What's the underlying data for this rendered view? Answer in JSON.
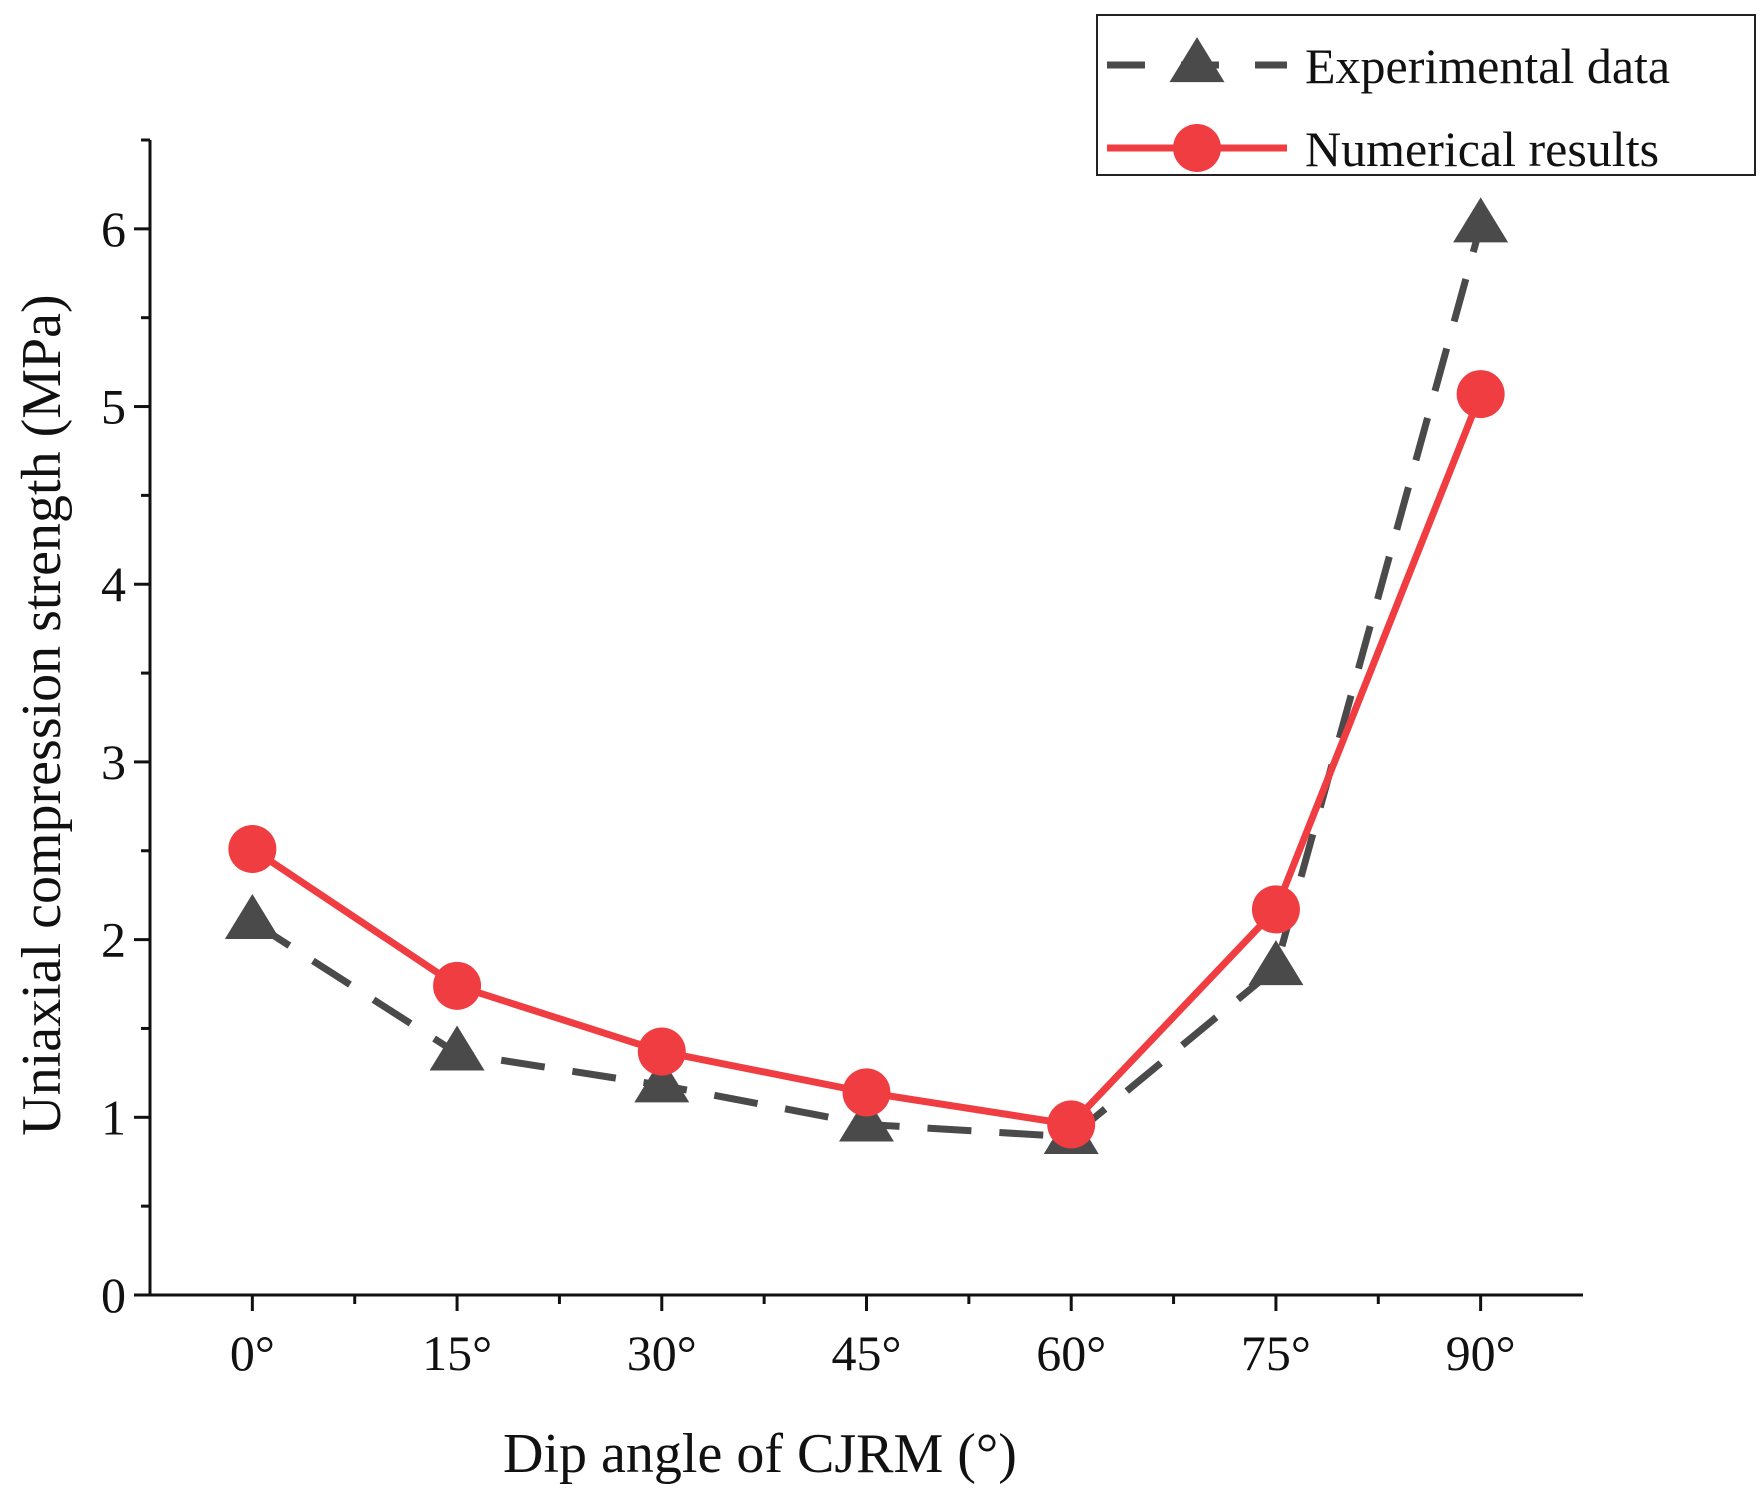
{
  "chart_data": {
    "type": "line",
    "title": "",
    "xlabel": "Dip angle of CJRM (°)",
    "ylabel": "Uniaxial compression strength (MPa)",
    "categories": [
      "0°",
      "15°",
      "30°",
      "45°",
      "60°",
      "75°",
      "90°"
    ],
    "x": [
      0,
      15,
      30,
      45,
      60,
      75,
      90
    ],
    "xlim": [
      -7.5,
      97.5
    ],
    "ylim": [
      0,
      6.5
    ],
    "yticks": [
      "0",
      "1",
      "2",
      "3",
      "4",
      "5",
      "6"
    ],
    "grid": false,
    "legend_position": "top-right",
    "series": [
      {
        "name": "Experimental data",
        "values": [
          2.1,
          1.36,
          1.18,
          0.96,
          0.89,
          1.84,
          6.02
        ],
        "color": "#4a4a4a",
        "marker": "triangle",
        "line_style": "dashed"
      },
      {
        "name": "Numerical results",
        "values": [
          2.51,
          1.74,
          1.37,
          1.14,
          0.96,
          2.17,
          5.07
        ],
        "color": "#ef3d42",
        "marker": "circle",
        "line_style": "solid"
      }
    ]
  }
}
